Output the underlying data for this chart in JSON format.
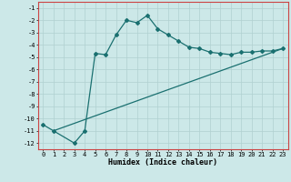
{
  "title": "",
  "xlabel": "Humidex (Indice chaleur)",
  "ylabel": "",
  "background_color": "#cce8e8",
  "grid_color": "#b0d0d0",
  "line_color": "#1a7070",
  "spine_color": "#cc4444",
  "xlim": [
    -0.5,
    23.5
  ],
  "ylim": [
    -12.5,
    -0.5
  ],
  "xticks": [
    0,
    1,
    2,
    3,
    4,
    5,
    6,
    7,
    8,
    9,
    10,
    11,
    12,
    13,
    14,
    15,
    16,
    17,
    18,
    19,
    20,
    21,
    22,
    23
  ],
  "yticks": [
    -12,
    -11,
    -10,
    -9,
    -8,
    -7,
    -6,
    -5,
    -4,
    -3,
    -2,
    -1
  ],
  "line1_x": [
    0,
    1,
    3,
    4,
    5,
    6,
    7,
    8,
    9,
    10,
    11,
    12,
    13,
    14,
    15,
    16,
    17,
    18,
    19,
    20,
    21,
    22,
    23
  ],
  "line1_y": [
    -10.5,
    -11.0,
    -12.0,
    -11.0,
    -4.7,
    -4.8,
    -3.2,
    -2.0,
    -2.2,
    -1.6,
    -2.7,
    -3.2,
    -3.7,
    -4.2,
    -4.3,
    -4.6,
    -4.7,
    -4.8,
    -4.6,
    -4.6,
    -4.5,
    -4.5,
    -4.3
  ],
  "line2_x": [
    1,
    23
  ],
  "line2_y": [
    -11.0,
    -4.3
  ],
  "marker": "D",
  "markersize": 2.0,
  "linewidth": 0.9,
  "tick_fontsize": 5.0,
  "xlabel_fontsize": 6.0
}
